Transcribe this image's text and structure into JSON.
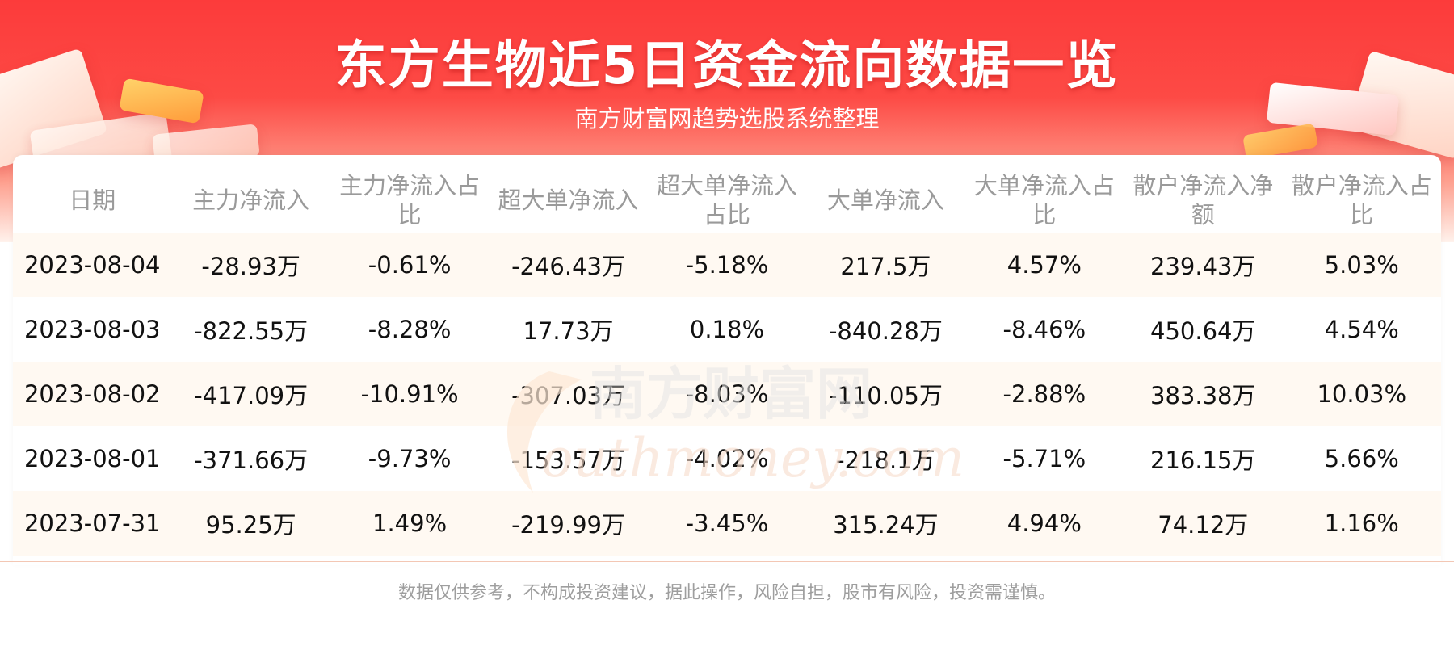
{
  "header": {
    "title": "东方生物近5日资金流向数据一览",
    "subtitle": "南方财富网趋势选股系统整理"
  },
  "table": {
    "columns": [
      "日期",
      "主力净流入",
      "主力净流入占比",
      "超大单净流入",
      "超大单净流入占比",
      "大单净流入",
      "大单净流入占比",
      "散户净流入净额",
      "散户净流入占比"
    ],
    "rows": [
      [
        "2023-08-04",
        "-28.93万",
        "-0.61%",
        "-246.43万",
        "-5.18%",
        "217.5万",
        "4.57%",
        "239.43万",
        "5.03%"
      ],
      [
        "2023-08-03",
        "-822.55万",
        "-8.28%",
        "17.73万",
        "0.18%",
        "-840.28万",
        "-8.46%",
        "450.64万",
        "4.54%"
      ],
      [
        "2023-08-02",
        "-417.09万",
        "-10.91%",
        "-307.03万",
        "-8.03%",
        "-110.05万",
        "-2.88%",
        "383.38万",
        "10.03%"
      ],
      [
        "2023-08-01",
        "-371.66万",
        "-9.73%",
        "-153.57万",
        "-4.02%",
        "-218.1万",
        "-5.71%",
        "216.15万",
        "5.66%"
      ],
      [
        "2023-07-31",
        "95.25万",
        "1.49%",
        "-219.99万",
        "-3.45%",
        "315.24万",
        "4.94%",
        "74.12万",
        "1.16%"
      ]
    ]
  },
  "watermark": {
    "cn": "南方财富网",
    "en": "outhmoney.com"
  },
  "footer": {
    "disclaimer": "数据仅供参考，不构成投资建议，据此操作，风险自担，股市有风险，投资需谨慎。"
  },
  "colors": {
    "banner_red": "#fc3b3b",
    "row_stripe": "#fff9f2",
    "header_text": "#9a9a9a"
  }
}
